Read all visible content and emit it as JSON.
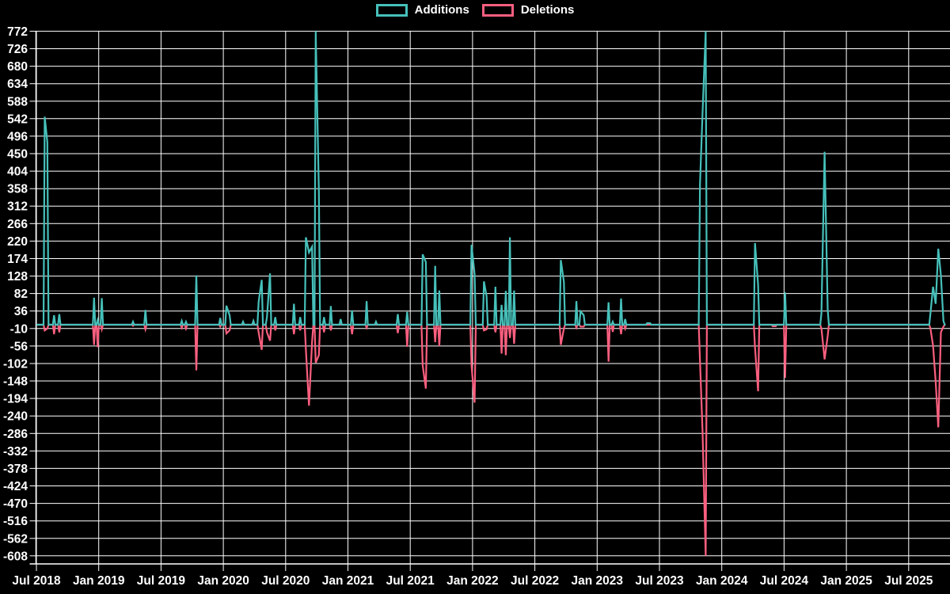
{
  "legend": {
    "items": [
      {
        "label": "Additions",
        "color": "#46c0ba"
      },
      {
        "label": "Deletions",
        "color": "#fa5f7f"
      }
    ]
  },
  "chart_data": {
    "type": "line",
    "title": "",
    "legend_position": "top",
    "grid": true,
    "colors": {
      "background": "#000000",
      "grid": "#ffffff",
      "axis_text": "#ffffff",
      "additions": "#46c0ba",
      "deletions": "#fa5f7f"
    },
    "x_tick_labels": [
      "Jul 2018",
      "Jan 2019",
      "Jul 2019",
      "Jan 2020",
      "Jul 2020",
      "Jan 2021",
      "Jul 2021",
      "Jan 2022",
      "Jul 2022",
      "Jan 2023",
      "Jul 2023",
      "Jan 2024",
      "Jul 2024",
      "Jan 2025",
      "Jul 2025"
    ],
    "y_tick_values": [
      772,
      726,
      680,
      634,
      588,
      542,
      496,
      450,
      404,
      358,
      312,
      266,
      220,
      174,
      128,
      82,
      36,
      -10,
      -56,
      -102,
      -148,
      -194,
      -240,
      -286,
      -332,
      -378,
      -424,
      -470,
      -516,
      -562,
      -608
    ],
    "ylim": [
      -608,
      772
    ],
    "series": [
      {
        "name": "Additions",
        "color": "#46c0ba"
      },
      {
        "name": "Deletions",
        "color": "#fa5f7f"
      }
    ],
    "points_format": [
      "months_after_jul_2018",
      "additions",
      "deletions"
    ],
    "points": [
      [
        0.8,
        547,
        -15
      ],
      [
        1.05,
        480,
        -10
      ],
      [
        1.7,
        25,
        -25
      ],
      [
        2.2,
        28,
        -20
      ],
      [
        5.55,
        71,
        -53
      ],
      [
        5.9,
        12,
        -59
      ],
      [
        6.3,
        70,
        -12
      ],
      [
        9.3,
        8,
        -3
      ],
      [
        10.5,
        39,
        -12
      ],
      [
        14.0,
        10,
        -8
      ],
      [
        14.4,
        8,
        -10
      ],
      [
        15.4,
        130,
        -120
      ],
      [
        17.7,
        18,
        -5
      ],
      [
        18.3,
        50,
        -23
      ],
      [
        18.6,
        25,
        -15
      ],
      [
        19.9,
        8,
        0
      ],
      [
        20.9,
        10,
        0
      ],
      [
        21.4,
        60,
        -20
      ],
      [
        21.7,
        118,
        -66
      ],
      [
        22.2,
        20,
        -20
      ],
      [
        22.5,
        135,
        -42
      ],
      [
        23.0,
        20,
        -15
      ],
      [
        24.8,
        55,
        -25
      ],
      [
        25.4,
        20,
        -15
      ],
      [
        25.95,
        230,
        -66
      ],
      [
        26.25,
        190,
        -213
      ],
      [
        26.55,
        205,
        -45
      ],
      [
        26.9,
        772,
        -100
      ],
      [
        27.2,
        350,
        -80
      ],
      [
        27.7,
        20,
        -20
      ],
      [
        28.35,
        49,
        -15
      ],
      [
        29.3,
        15,
        0
      ],
      [
        30.4,
        38,
        -25
      ],
      [
        31.8,
        62,
        -8
      ],
      [
        32.7,
        8,
        0
      ],
      [
        34.8,
        28,
        -22
      ],
      [
        35.7,
        34,
        -58
      ],
      [
        37.2,
        185,
        -107
      ],
      [
        37.5,
        165,
        -168
      ],
      [
        38.4,
        155,
        -46
      ],
      [
        38.8,
        90,
        -56
      ],
      [
        41.9,
        210,
        -107
      ],
      [
        42.2,
        133,
        -205
      ],
      [
        43.1,
        114,
        -15
      ],
      [
        43.35,
        75,
        -12
      ],
      [
        44.2,
        100,
        -20
      ],
      [
        44.8,
        52,
        -76
      ],
      [
        45.2,
        89,
        -80
      ],
      [
        45.6,
        230,
        -35
      ],
      [
        46.0,
        90,
        -50
      ],
      [
        50.5,
        170,
        -53
      ],
      [
        50.8,
        113,
        -10
      ],
      [
        52.0,
        62,
        -8
      ],
      [
        52.4,
        35,
        -5
      ],
      [
        52.7,
        25,
        -5
      ],
      [
        55.1,
        59,
        -97
      ],
      [
        55.5,
        8,
        -19
      ],
      [
        56.3,
        69,
        -25
      ],
      [
        56.7,
        15,
        -10
      ],
      [
        58.8,
        4,
        0
      ],
      [
        59.1,
        4,
        0
      ],
      [
        63.9,
        370,
        -95
      ],
      [
        64.15,
        555,
        -280
      ],
      [
        64.45,
        772,
        -608
      ],
      [
        69.2,
        215,
        -60
      ],
      [
        69.5,
        105,
        -175
      ],
      [
        70.9,
        0,
        -4
      ],
      [
        71.2,
        0,
        -4
      ],
      [
        72.1,
        85,
        -140
      ],
      [
        75.6,
        30,
        -10
      ],
      [
        75.9,
        455,
        -91
      ],
      [
        76.2,
        40,
        -30
      ],
      [
        86.1,
        30,
        -10
      ],
      [
        86.35,
        100,
        -55
      ],
      [
        86.6,
        55,
        -150
      ],
      [
        86.85,
        200,
        -270
      ],
      [
        87.1,
        130,
        -20
      ],
      [
        87.35,
        10,
        -5
      ]
    ]
  }
}
